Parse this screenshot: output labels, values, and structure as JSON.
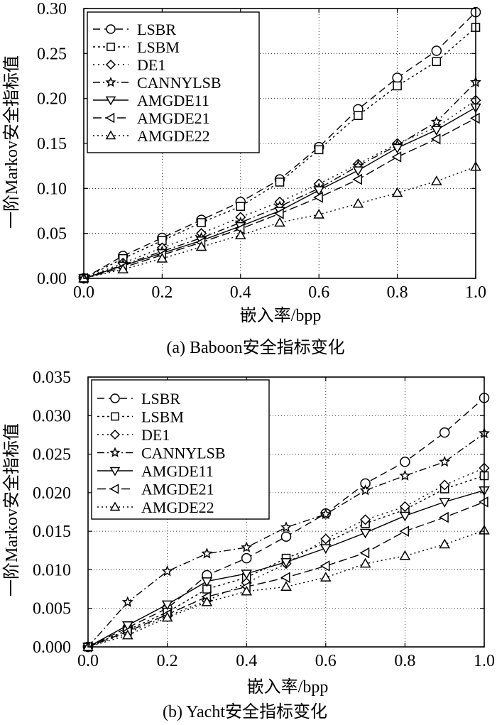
{
  "chart_data": [
    {
      "type": "line",
      "caption": "(a) Baboon安全指标变化",
      "xlabel": "嵌入率/bpp",
      "ylabel": "一阶Markov安全指标值",
      "xlim": [
        0,
        1
      ],
      "ylim": [
        0,
        0.3
      ],
      "xticks": [
        0,
        0.2,
        0.4,
        0.6,
        0.8,
        1
      ],
      "xtick_labels": [
        "0.0",
        "0.2",
        "0.4",
        "0.6",
        "0.8",
        "1.0"
      ],
      "yticks": [
        0,
        0.05,
        0.1,
        0.15,
        0.2,
        0.25,
        0.3
      ],
      "ytick_labels": [
        "0.00",
        "0.05",
        "0.10",
        "0.15",
        "0.20",
        "0.25",
        "0.30"
      ],
      "grid": true,
      "legend": "top-left",
      "x": [
        0,
        0.1,
        0.2,
        0.3,
        0.4,
        0.5,
        0.6,
        0.7,
        0.8,
        0.9,
        1.0
      ],
      "series": [
        {
          "name": "LSBR",
          "marker": "circle",
          "dash": "10,6",
          "values": [
            0.0,
            0.025,
            0.045,
            0.065,
            0.085,
            0.11,
            0.146,
            0.188,
            0.223,
            0.253,
            0.296
          ]
        },
        {
          "name": "LSBM",
          "marker": "square",
          "dash": "3,4",
          "values": [
            0.0,
            0.022,
            0.042,
            0.062,
            0.08,
            0.107,
            0.143,
            0.181,
            0.214,
            0.241,
            0.279
          ]
        },
        {
          "name": "DE1",
          "marker": "diamond",
          "dash": "2,5",
          "values": [
            0.0,
            0.017,
            0.034,
            0.05,
            0.068,
            0.085,
            0.105,
            0.127,
            0.15,
            0.168,
            0.198
          ]
        },
        {
          "name": "CANNYLSB",
          "marker": "star",
          "dash": "10,4,2,4",
          "values": [
            0.0,
            0.015,
            0.03,
            0.045,
            0.062,
            0.08,
            0.1,
            0.125,
            0.148,
            0.174,
            0.218
          ]
        },
        {
          "name": "AMGDE11",
          "marker": "tri-down",
          "dash": "none",
          "values": [
            0.0,
            0.014,
            0.028,
            0.042,
            0.058,
            0.075,
            0.098,
            0.12,
            0.145,
            0.165,
            0.19
          ]
        },
        {
          "name": "AMGDE21",
          "marker": "tri-left",
          "dash": "12,5",
          "values": [
            0.0,
            0.012,
            0.026,
            0.04,
            0.055,
            0.072,
            0.09,
            0.11,
            0.135,
            0.155,
            0.178
          ]
        },
        {
          "name": "AMGDE22",
          "marker": "tri-up",
          "dash": "2,4",
          "values": [
            0.0,
            0.01,
            0.022,
            0.035,
            0.048,
            0.062,
            0.071,
            0.083,
            0.095,
            0.108,
            0.124
          ]
        }
      ]
    },
    {
      "type": "line",
      "caption": "(b) Yacht安全指标变化",
      "xlabel": "嵌入率/bpp",
      "ylabel": "一阶Markov安全指标值",
      "xlim": [
        0,
        1
      ],
      "ylim": [
        0,
        0.035
      ],
      "xticks": [
        0,
        0.2,
        0.4,
        0.6,
        0.8,
        1
      ],
      "xtick_labels": [
        "0.0",
        "0.2",
        "0.4",
        "0.6",
        "0.8",
        "1.0"
      ],
      "yticks": [
        0,
        0.005,
        0.01,
        0.015,
        0.02,
        0.025,
        0.03,
        0.035
      ],
      "ytick_labels": [
        "0.000",
        "0.005",
        "0.010",
        "0.015",
        "0.020",
        "0.025",
        "0.030",
        "0.035"
      ],
      "grid": true,
      "legend": "top-left",
      "x": [
        0,
        0.1,
        0.2,
        0.3,
        0.4,
        0.5,
        0.6,
        0.7,
        0.8,
        0.9,
        1.0
      ],
      "series": [
        {
          "name": "LSBR",
          "marker": "circle",
          "dash": "10,6",
          "values": [
            0.0,
            0.0025,
            0.005,
            0.0093,
            0.0115,
            0.0143,
            0.0173,
            0.0212,
            0.024,
            0.0278,
            0.0323
          ]
        },
        {
          "name": "LSBM",
          "marker": "square",
          "dash": "3,4",
          "values": [
            0.0,
            0.0022,
            0.0045,
            0.0075,
            0.009,
            0.0115,
            0.0135,
            0.016,
            0.0178,
            0.0205,
            0.0222
          ]
        },
        {
          "name": "DE1",
          "marker": "diamond",
          "dash": "2,5",
          "values": [
            0.0,
            0.0018,
            0.004,
            0.006,
            0.0083,
            0.0108,
            0.014,
            0.0165,
            0.0182,
            0.021,
            0.0232
          ]
        },
        {
          "name": "CANNYLSB",
          "marker": "star",
          "dash": "10,4,2,4",
          "values": [
            0.0,
            0.0058,
            0.0098,
            0.0121,
            0.0129,
            0.0155,
            0.0172,
            0.0203,
            0.0222,
            0.024,
            0.0277
          ]
        },
        {
          "name": "AMGDE11",
          "marker": "tri-down",
          "dash": "none",
          "values": [
            0.0,
            0.0028,
            0.0055,
            0.0085,
            0.0095,
            0.011,
            0.0128,
            0.0148,
            0.017,
            0.0188,
            0.0203
          ]
        },
        {
          "name": "AMGDE21",
          "marker": "tri-left",
          "dash": "12,5",
          "values": [
            0.0,
            0.002,
            0.0042,
            0.0065,
            0.0078,
            0.009,
            0.0105,
            0.0122,
            0.015,
            0.0168,
            0.0188
          ]
        },
        {
          "name": "AMGDE22",
          "marker": "tri-up",
          "dash": "2,4",
          "values": [
            0.0,
            0.0015,
            0.0038,
            0.0058,
            0.0072,
            0.0078,
            0.009,
            0.0108,
            0.0118,
            0.0133,
            0.0151
          ]
        }
      ]
    }
  ]
}
